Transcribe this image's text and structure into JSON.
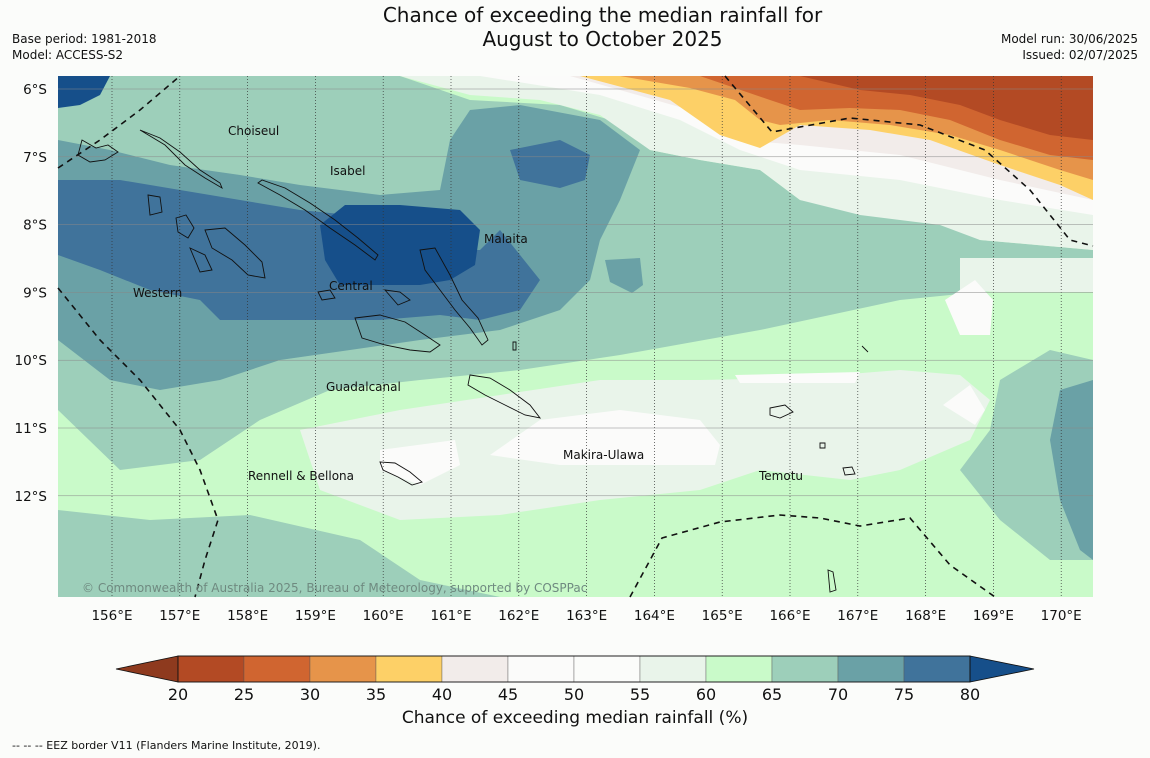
{
  "header": {
    "title_line1": "Chance of exceeding the median rainfall for",
    "title_line2": "August to October 2025",
    "base_period": "Base period: 1981-2018",
    "model": "Model: ACCESS-S2",
    "model_run": "Model run: 30/06/2025",
    "issued": "Issued: 02/07/2025"
  },
  "map": {
    "lon_labels": [
      "156°E",
      "157°E",
      "158°E",
      "159°E",
      "160°E",
      "161°E",
      "162°E",
      "163°E",
      "164°E",
      "165°E",
      "166°E",
      "167°E",
      "168°E",
      "169°E",
      "170°E"
    ],
    "lat_labels": [
      "6°S",
      "7°S",
      "8°S",
      "9°S",
      "10°S",
      "11°S",
      "12°S"
    ],
    "provinces": [
      "Choiseul",
      "Isabel",
      "Malaita",
      "Western",
      "Central",
      "Guadalcanal",
      "Makira-Ulawa",
      "Rennell & Bellona",
      "Temotu"
    ],
    "copyright": "© Commonwealth of Australia 2025, Bureau of Meteorology, supported by COSPPac"
  },
  "colorbar": {
    "ticks": [
      "20",
      "25",
      "30",
      "35",
      "40",
      "45",
      "50",
      "55",
      "60",
      "65",
      "70",
      "75",
      "80"
    ],
    "colors": {
      "under": "#8e3a1e",
      "c20_25": "#b34a24",
      "c25_30": "#d06530",
      "c30_35": "#e6944a",
      "c35_40": "#fdd067",
      "c40_45": "#f2ecea",
      "c45_50": "#fbfbfa",
      "c50_55": "#fbfcfa",
      "c55_60": "#e9f4ea",
      "c60_65": "#c9fac9",
      "c65_70": "#9dcfba",
      "c70_75": "#6aa1a6",
      "c75_80": "#40739b",
      "over": "#164f8a"
    },
    "label": "Chance of exceeding median rainfall (%)"
  },
  "footnote": "--  --  -- EEZ border V11 (Flanders Marine Institute, 2019)."
}
